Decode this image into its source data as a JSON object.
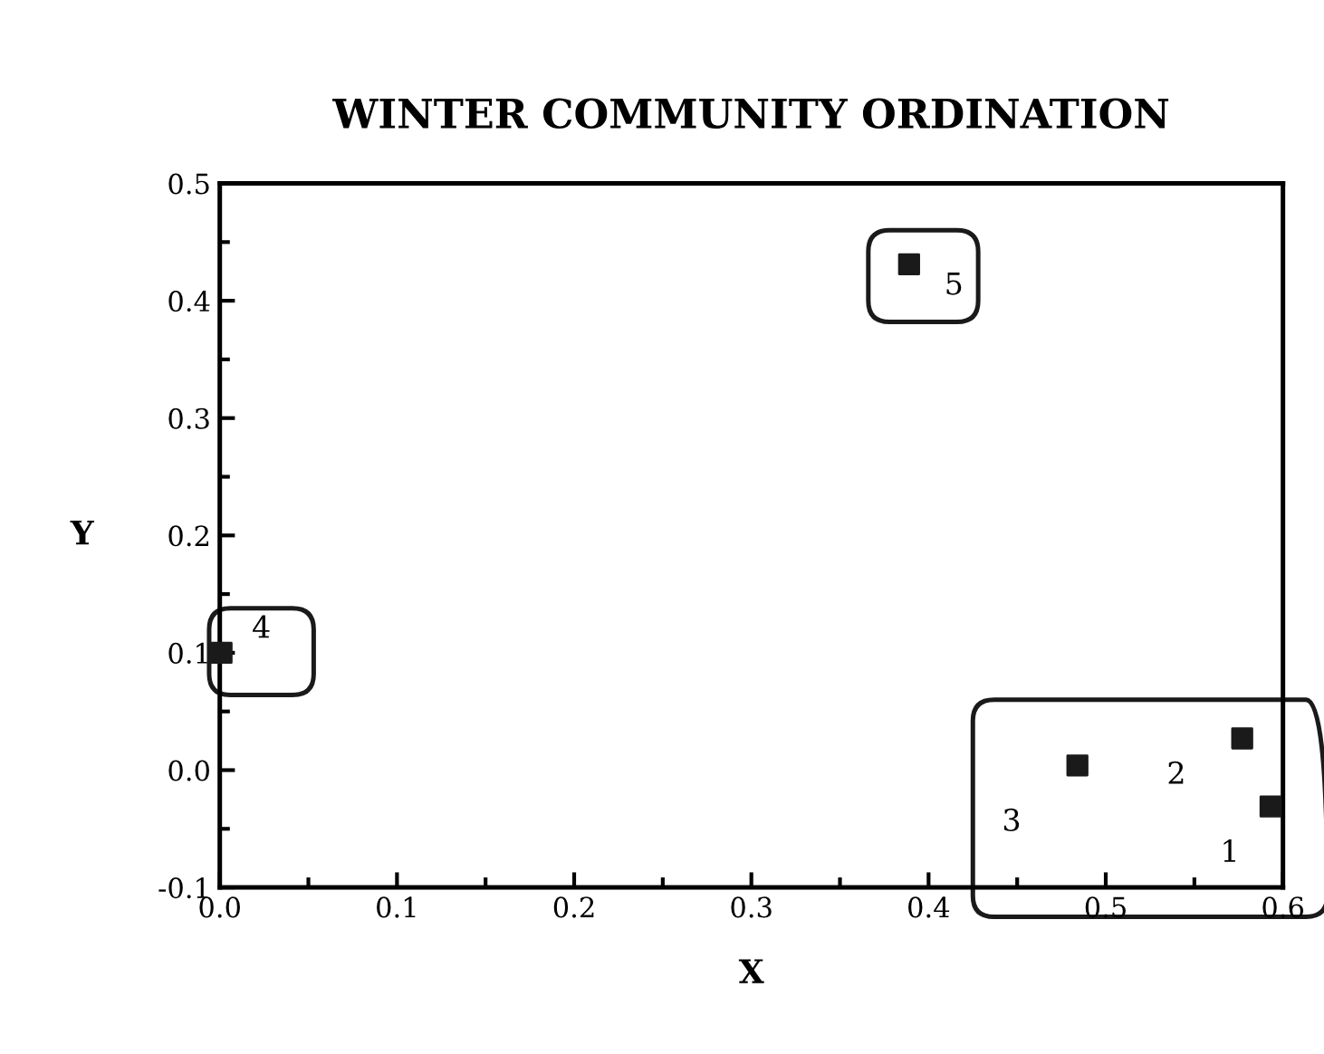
{
  "chart_data": {
    "type": "scatter",
    "title": "WINTER COMMUNITY ORDINATION",
    "xlabel": "X",
    "ylabel": "Y",
    "x": [
      0.593,
      0.577,
      0.484,
      0.001,
      0.389
    ],
    "values": [
      -0.031,
      0.027,
      0.004,
      0.1,
      0.431
    ],
    "color": "#1a1a1a",
    "marker": "square",
    "grid": false,
    "xlim": [
      0.0,
      0.6
    ],
    "xticks": [
      {
        "value": 0.0,
        "label": "0.0"
      },
      0.1,
      0.2,
      0.3,
      0.4,
      0.5,
      0.6
    ],
    "ylim": [
      -0.1,
      0.5
    ],
    "yticks": [
      -0.1,
      {
        "value": 0.0,
        "label": "0.0"
      },
      0.1,
      0.2,
      0.3,
      0.4,
      0.5
    ],
    "annotations": [
      {
        "text": "1",
        "x": 0.593,
        "y": -0.031
      },
      {
        "text": "2",
        "x": 0.577,
        "y": 0.027
      },
      {
        "text": "3",
        "x": 0.484,
        "y": 0.004
      },
      {
        "text": "4",
        "x": 0.001,
        "y": 0.1
      },
      {
        "text": "5",
        "x": 0.389,
        "y": 0.431
      }
    ]
  }
}
